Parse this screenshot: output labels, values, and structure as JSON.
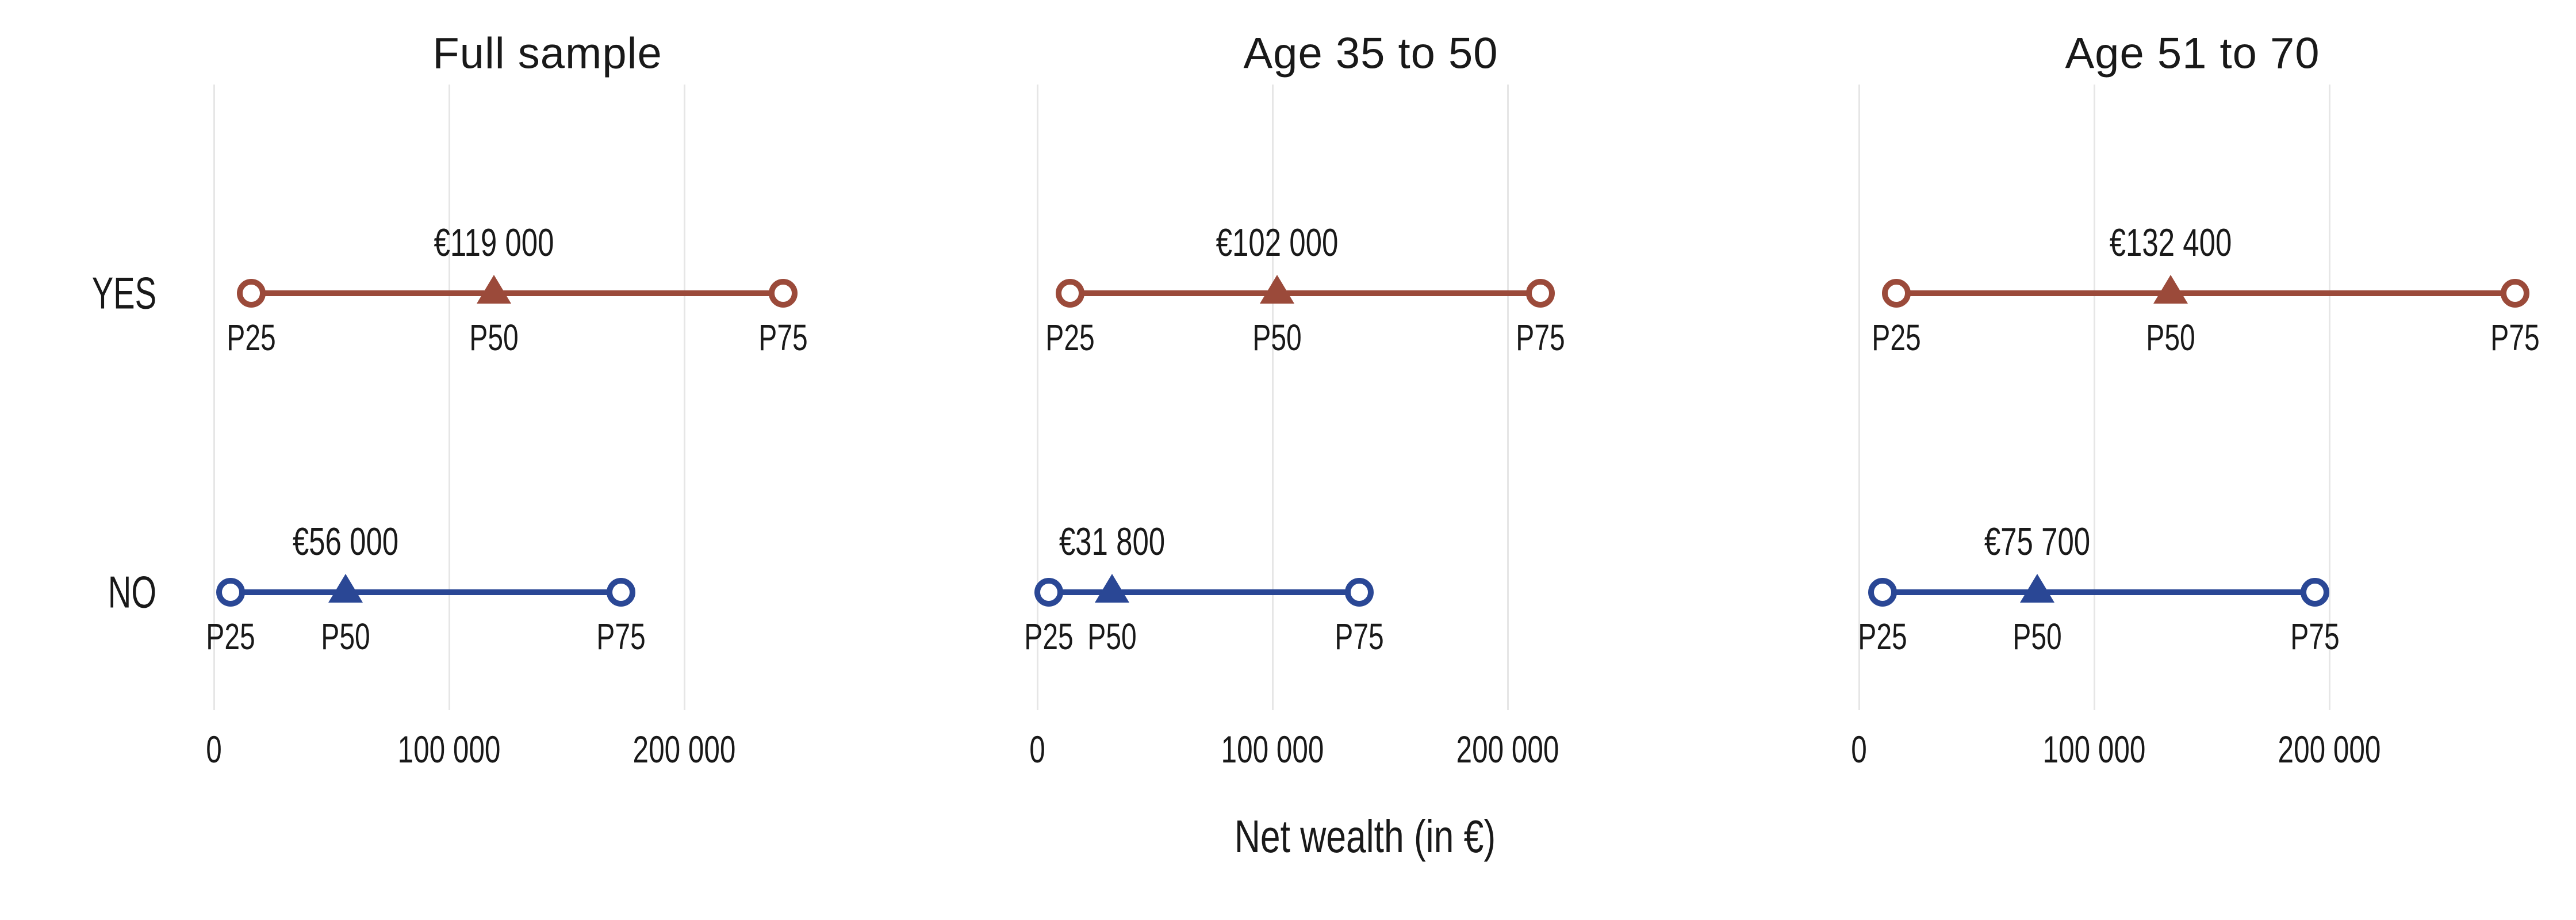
{
  "chart_data": {
    "type": "scatter",
    "subtype": "dumbbell-range",
    "description": "Net wealth percentiles (P25, P50, P75) by inheritance status (YES/NO), three panels",
    "x_axis": {
      "label": "Net wealth (in €)",
      "ticks": [
        0,
        100000,
        200000
      ],
      "tick_labels": [
        "0",
        "100 000",
        "200 000"
      ],
      "range": [
        0,
        285000
      ],
      "grid": true
    },
    "point_labels": [
      "P25",
      "P50",
      "P75"
    ],
    "categories": [
      "YES",
      "NO"
    ],
    "panels": [
      {
        "title": "Full sample",
        "rows": [
          {
            "label": "YES",
            "p25": 16000,
            "p50": 119000,
            "p75": 242000,
            "median_label": "€119 000"
          },
          {
            "label": "NO",
            "p25": 7000,
            "p50": 56000,
            "p75": 173000,
            "median_label": "€56 000"
          }
        ]
      },
      {
        "title": "Age 35 to 50",
        "rows": [
          {
            "label": "YES",
            "p25": 14000,
            "p50": 102000,
            "p75": 214000,
            "median_label": "€102 000"
          },
          {
            "label": "NO",
            "p25": 5000,
            "p50": 31800,
            "p75": 137000,
            "median_label": "€31 800"
          }
        ]
      },
      {
        "title": "Age 51 to 70",
        "rows": [
          {
            "label": "YES",
            "p25": 16000,
            "p50": 132400,
            "p75": 279000,
            "median_label": "€132 400"
          },
          {
            "label": "NO",
            "p25": 10000,
            "p50": 75700,
            "p75": 194000,
            "median_label": "€75 700"
          }
        ]
      }
    ],
    "legend_position": "none"
  },
  "colors": {
    "yes_series": "#9B4A3A",
    "no_series": "#2A4795",
    "gridline": "#E6E6E6",
    "text": "#191919",
    "background": "#FFFFFF"
  }
}
